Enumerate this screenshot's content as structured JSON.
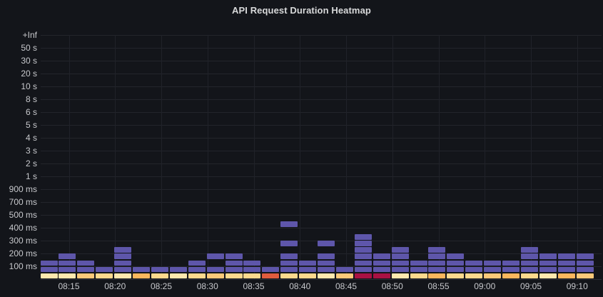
{
  "panel": {
    "title": "API Request Duration Heatmap"
  },
  "colors": {
    "background": "#13151a",
    "grid": "#23252b",
    "axis_text": "#c7c8cc",
    "title_text": "#d8d9da",
    "purple": "#5E56AA",
    "pale": "#FFE8AE",
    "yellow": "#FDD98D",
    "gold": "#FCC979",
    "orange": "#FBB75D",
    "redorange": "#E05C3E",
    "crimson": "#A91143"
  },
  "chart_data": {
    "type": "heatmap",
    "title": "API Request Duration Heatmap",
    "legend": false,
    "y_axis_labels": [
      "+Inf",
      "50 s",
      "30 s",
      "20 s",
      "10 s",
      "8 s",
      "6 s",
      "5 s",
      "4 s",
      "3 s",
      "2 s",
      "1 s",
      "900 ms",
      "700 ms",
      "500 ms",
      "400 ms",
      "300 ms",
      "200 ms",
      "100 ms"
    ],
    "x_axis_labels": [
      "08:15",
      "08:20",
      "08:25",
      "08:30",
      "08:35",
      "08:40",
      "08:45",
      "08:50",
      "08:55",
      "09:00",
      "09:05",
      "09:10"
    ],
    "x_range": [
      "08:12",
      "09:12"
    ],
    "column_width_minutes": 2,
    "row_height_ms": 50,
    "levels_note": "level 0 = 0-50 ms bottom bucket row (warm colored); each higher level adds 50 ms; purple_levels lists occupied 50 ms bucket rows above the bottom row",
    "columns": [
      {
        "time": "08:12",
        "bottom_color": "pale",
        "purple_levels": [
          1,
          2
        ]
      },
      {
        "time": "08:14",
        "bottom_color": "pale",
        "purple_levels": [
          1,
          2,
          3
        ]
      },
      {
        "time": "08:16",
        "bottom_color": "gold",
        "purple_levels": [
          1,
          2
        ]
      },
      {
        "time": "08:18",
        "bottom_color": "yellow",
        "purple_levels": [
          1
        ]
      },
      {
        "time": "08:20",
        "bottom_color": "pale",
        "purple_levels": [
          1,
          2,
          3,
          4
        ]
      },
      {
        "time": "08:22",
        "bottom_color": "orange",
        "purple_levels": [
          1
        ]
      },
      {
        "time": "08:24",
        "bottom_color": "yellow",
        "purple_levels": [
          1
        ]
      },
      {
        "time": "08:26",
        "bottom_color": "pale",
        "purple_levels": [
          1
        ]
      },
      {
        "time": "08:28",
        "bottom_color": "yellow",
        "purple_levels": [
          1,
          2
        ]
      },
      {
        "time": "08:30",
        "bottom_color": "gold",
        "purple_levels": [
          1,
          3
        ]
      },
      {
        "time": "08:32",
        "bottom_color": "yellow",
        "purple_levels": [
          1,
          2,
          3
        ]
      },
      {
        "time": "08:34",
        "bottom_color": "yellow",
        "purple_levels": [
          1,
          2
        ]
      },
      {
        "time": "08:36",
        "bottom_color": "redorange",
        "purple_levels": [
          1
        ]
      },
      {
        "time": "08:38",
        "bottom_color": "yellow",
        "purple_levels": [
          1,
          2,
          3,
          5,
          8
        ]
      },
      {
        "time": "08:40",
        "bottom_color": "yellow",
        "purple_levels": [
          1,
          2
        ]
      },
      {
        "time": "08:42",
        "bottom_color": "pale",
        "purple_levels": [
          1,
          2,
          3,
          5
        ]
      },
      {
        "time": "08:44",
        "bottom_color": "gold",
        "purple_levels": [
          1
        ]
      },
      {
        "time": "08:46",
        "bottom_color": "crimson",
        "purple_levels": [
          1,
          2,
          3,
          4,
          5,
          6
        ]
      },
      {
        "time": "08:48",
        "bottom_color": "crimson",
        "purple_levels": [
          1,
          2,
          3
        ]
      },
      {
        "time": "08:50",
        "bottom_color": "pale",
        "purple_levels": [
          1,
          2,
          3,
          4
        ]
      },
      {
        "time": "08:52",
        "bottom_color": "yellow",
        "purple_levels": [
          1,
          2
        ]
      },
      {
        "time": "08:54",
        "bottom_color": "orange",
        "purple_levels": [
          1,
          2,
          3,
          4
        ]
      },
      {
        "time": "08:56",
        "bottom_color": "yellow",
        "purple_levels": [
          1,
          2,
          3
        ]
      },
      {
        "time": "08:58",
        "bottom_color": "yellow",
        "purple_levels": [
          1,
          2
        ]
      },
      {
        "time": "09:00",
        "bottom_color": "gold",
        "purple_levels": [
          1,
          2
        ]
      },
      {
        "time": "09:02",
        "bottom_color": "orange",
        "purple_levels": [
          1,
          2
        ]
      },
      {
        "time": "09:04",
        "bottom_color": "yellow",
        "purple_levels": [
          1,
          2,
          3,
          4
        ]
      },
      {
        "time": "09:06",
        "bottom_color": "pale",
        "purple_levels": [
          1,
          2,
          3
        ]
      },
      {
        "time": "09:08",
        "bottom_color": "orange",
        "purple_levels": [
          1,
          2,
          3
        ]
      },
      {
        "time": "09:10",
        "bottom_color": "gold",
        "purple_levels": [
          1,
          2,
          3
        ]
      }
    ]
  }
}
